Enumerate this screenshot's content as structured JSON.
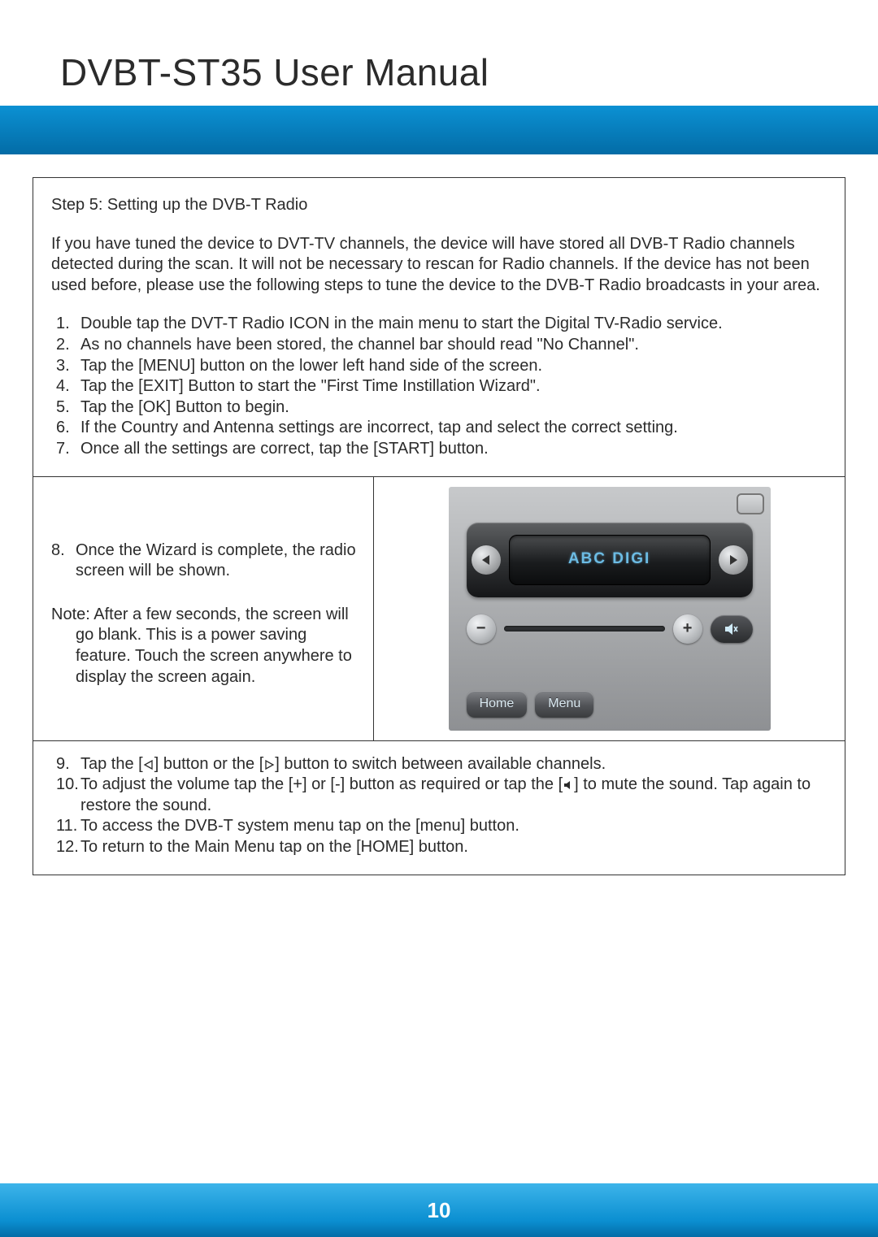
{
  "page": {
    "title": "DVBT-ST35 User Manual",
    "number": "10"
  },
  "step": {
    "heading": "Step 5: Setting up the DVB-T Radio",
    "intro": "If you have tuned the device to DVT-TV channels, the device will have stored all DVB-T Radio channels detected during the scan. It will not be necessary to rescan for Radio channels. If the device has not been used before, please use the following steps to tune the device to the DVB-T Radio broadcasts in your area.",
    "items1": [
      "Double tap the DVT-T Radio ICON in the main menu to start the Digital TV-Radio service.",
      "As no channels have been stored, the channel bar should read \"No Channel\".",
      "Tap the [MENU] button on the lower left hand side of the screen.",
      "Tap the [EXIT] Button to start the \"First Time Instillation Wizard\".",
      "Tap the [OK] Button to begin.",
      "If the Country and Antenna settings are incorrect, tap and select the correct setting.",
      "Once all the settings are correct, tap the [START] button."
    ],
    "item8_num": "8.",
    "item8": "Once the Wizard is complete, the radio screen will be shown.",
    "note_label": "Note",
    "note_body": ":  After a few seconds, the screen will go blank. This is a power saving feature. Touch the screen anywhere to display the screen again.",
    "item9_num": "9.",
    "item9_a": "Tap the [",
    "item9_b": "] button or the [",
    "item9_c": "] button to switch between available channels.",
    "item10_num": "10.",
    "item10_a": "To adjust the volume tap the [+] or [-] button as required or tap the [",
    "item10_b": "] to mute the sound. Tap again to restore the sound.",
    "item11_num": "11.",
    "item11": "To access the DVB-T system menu tap on the [menu] button.",
    "item12_num": "12.",
    "item12": "To return to the Main Menu tap on the [HOME] button."
  },
  "device": {
    "channel_label": "ABC DIGI",
    "home_label": "Home",
    "menu_label": "Menu"
  },
  "colors": {
    "band_top": "#3db4ea",
    "band_bottom": "#036ca6",
    "text": "#2b2b2b",
    "channel_text": "#6cbce4"
  }
}
